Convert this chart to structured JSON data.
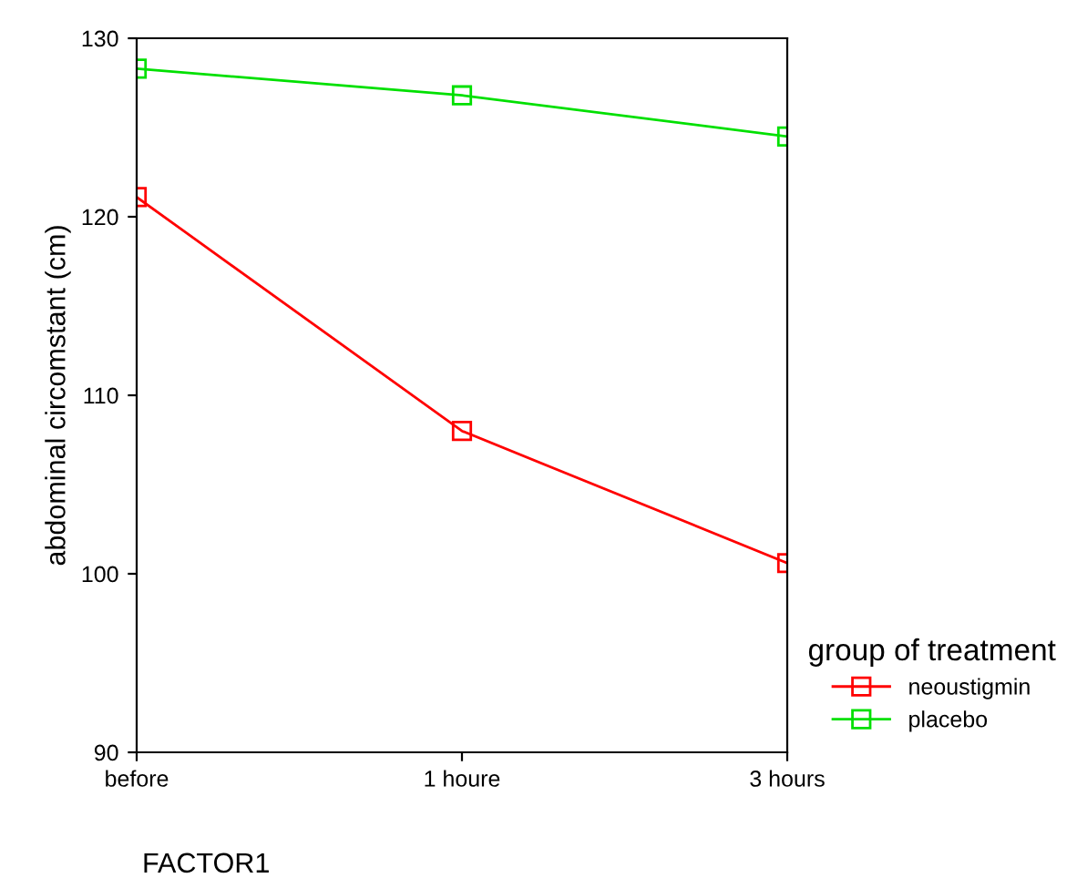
{
  "chart_data": {
    "type": "line",
    "xlabel": "FACTOR1",
    "ylabel": "abdominal circomstant (cm)",
    "legend_title": "group of treatment",
    "categories": [
      "before",
      "1 houre",
      "3 hours"
    ],
    "series": [
      {
        "name": "neoustigmin",
        "color": "#ff0000",
        "values": [
          121.1,
          108.0,
          100.6
        ]
      },
      {
        "name": "placebo",
        "color": "#00e000",
        "values": [
          128.3,
          126.8,
          124.5
        ]
      }
    ],
    "ylim": [
      90,
      130
    ],
    "yticks": [
      90,
      100,
      110,
      120,
      130
    ],
    "marker": "square",
    "legend": "right",
    "grid": false
  }
}
